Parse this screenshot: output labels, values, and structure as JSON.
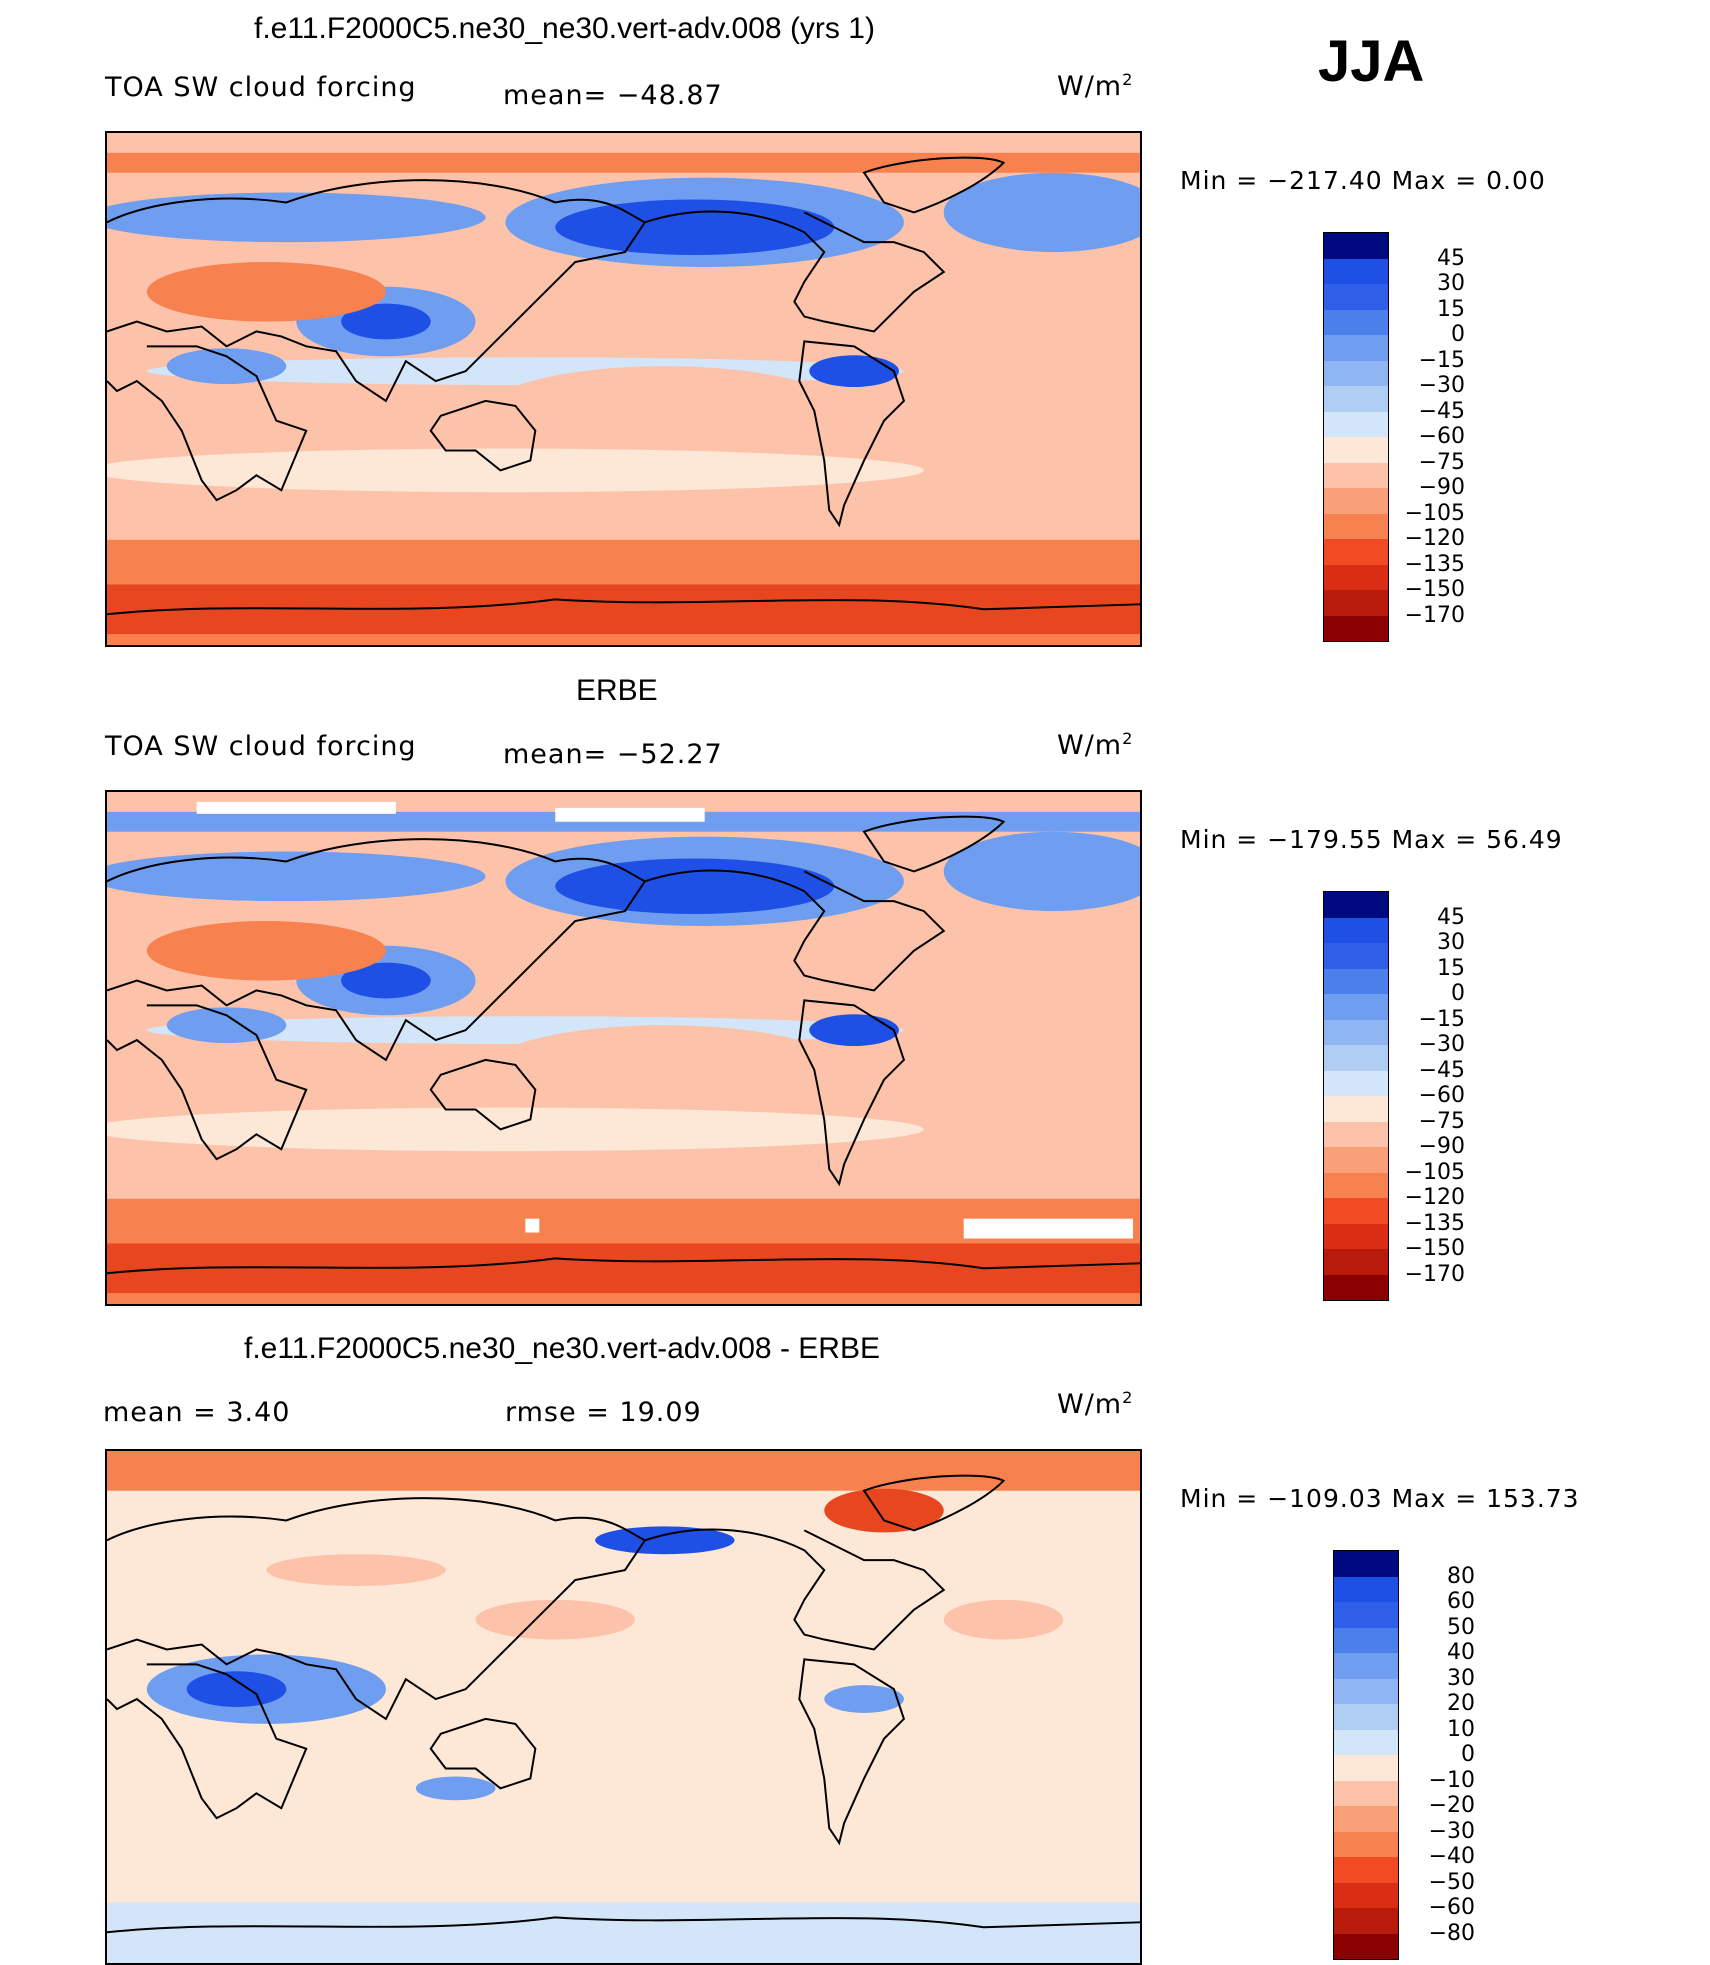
{
  "corner_label": "JJA",
  "colors": {
    "deep_red": "#8b0000",
    "red": "#e8461f",
    "orange": "#f7814f",
    "salmon": "#fcc2aa",
    "cream": "#fde7d6",
    "pale_blue": "#d3e5f8",
    "mid_blue": "#6f9ef0",
    "blue": "#1f50e6",
    "navy": "#000a80",
    "white": "#ffffff",
    "coast": "#000000"
  },
  "chart_data": [
    {
      "type": "heatmap",
      "title": "f.e11.F2000C5.ne30_ne30.vert-adv.008 (yrs 1)",
      "variable": "TOA SW cloud forcing",
      "stat_text": "mean=  −48.87",
      "units_base": "W/m",
      "units_exp": "2",
      "minmax_text": "Min  =  −217.40  Max  =     0.00",
      "colorbar_labels": [
        "45",
        "30",
        "15",
        "0",
        "−15",
        "−30",
        "−45",
        "−60",
        "−75",
        "−90",
        "−105",
        "−120",
        "−135",
        "−150",
        "−170"
      ],
      "colorbar_colors": [
        "#8b0000",
        "#b81b0a",
        "#d92e13",
        "#f24a23",
        "#f7814f",
        "#f9a078",
        "#fcc2aa",
        "#fde7d6",
        "#d3e5f8",
        "#b0cdf4",
        "#8fb5f2",
        "#6f9ef0",
        "#4b80ec",
        "#2f5fe8",
        "#1f50e6",
        "#000a80"
      ]
    },
    {
      "type": "heatmap",
      "title": "ERBE",
      "variable": "TOA SW cloud forcing",
      "stat_text": "mean=  −52.27",
      "units_base": "W/m",
      "units_exp": "2",
      "minmax_text": "Min  =  −179.55  Max  =    56.49",
      "colorbar_labels": [
        "45",
        "30",
        "15",
        "0",
        "−15",
        "−30",
        "−45",
        "−60",
        "−75",
        "−90",
        "−105",
        "−120",
        "−135",
        "−150",
        "−170"
      ],
      "colorbar_colors": [
        "#8b0000",
        "#b81b0a",
        "#d92e13",
        "#f24a23",
        "#f7814f",
        "#f9a078",
        "#fcc2aa",
        "#fde7d6",
        "#d3e5f8",
        "#b0cdf4",
        "#8fb5f2",
        "#6f9ef0",
        "#4b80ec",
        "#2f5fe8",
        "#1f50e6",
        "#000a80"
      ]
    },
    {
      "type": "heatmap",
      "title": "f.e11.F2000C5.ne30_ne30.vert-adv.008 - ERBE",
      "variable": "",
      "stat_text": "mean  =     3.40",
      "stat_text_2": "rmse  =    19.09",
      "units_base": "W/m",
      "units_exp": "2",
      "minmax_text": "Min  =  −109.03  Max  =  153.73",
      "colorbar_labels": [
        "80",
        "60",
        "50",
        "40",
        "30",
        "20",
        "10",
        "0",
        "−10",
        "−20",
        "−30",
        "−40",
        "−50",
        "−60",
        "−80"
      ],
      "colorbar_colors": [
        "#8b0000",
        "#b81b0a",
        "#d92e13",
        "#f24a23",
        "#f7814f",
        "#f9a078",
        "#fcc2aa",
        "#fde7d6",
        "#d3e5f8",
        "#b0cdf4",
        "#8fb5f2",
        "#6f9ef0",
        "#4b80ec",
        "#2f5fe8",
        "#1f50e6",
        "#000a80"
      ]
    }
  ]
}
